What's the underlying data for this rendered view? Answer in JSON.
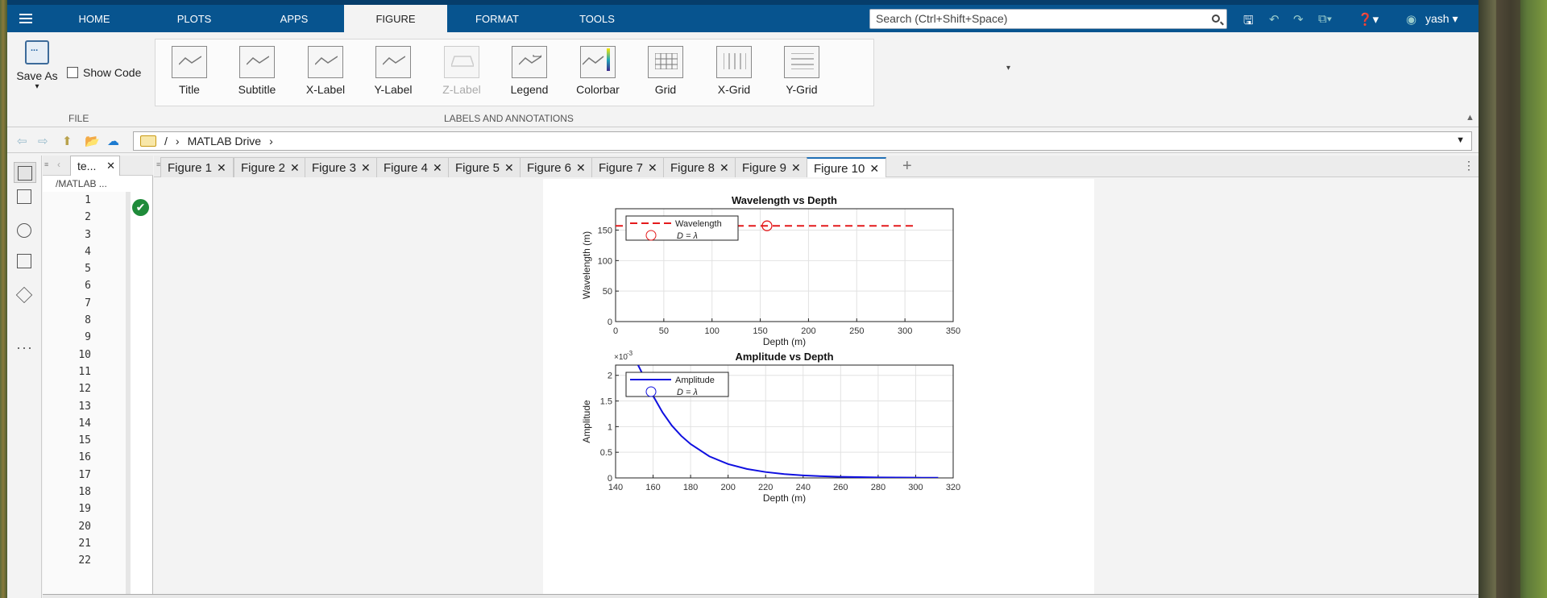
{
  "menubar": {
    "tabs": [
      "HOME",
      "PLOTS",
      "APPS",
      "FIGURE",
      "FORMAT",
      "TOOLS"
    ],
    "active": "FIGURE",
    "search_placeholder": "Search (Ctrl+Shift+Space)",
    "user": "yash"
  },
  "ribbon": {
    "file": {
      "save_as": "Save As",
      "show_code": "Show Code",
      "group_label": "FILE"
    },
    "labels_group_label": "LABELS AND ANNOTATIONS",
    "buttons": [
      "Title",
      "Subtitle",
      "X-Label",
      "Y-Label",
      "Z-Label",
      "Legend",
      "Colorbar",
      "Grid",
      "X-Grid",
      "Y-Grid"
    ]
  },
  "address": {
    "root": "/",
    "crumb": "MATLAB Drive"
  },
  "editor": {
    "tab_label": "te...",
    "path": "/MATLAB ...",
    "line_numbers": [
      "1",
      "2",
      "3",
      "4",
      "5",
      "6",
      "7",
      "8",
      "9",
      "10",
      "11",
      "12",
      "13",
      "14",
      "15",
      "16",
      "17",
      "18",
      "19",
      "20",
      "21",
      "22"
    ]
  },
  "figure_tabs": [
    "Figure 1",
    "Figure 2",
    "Figure 3",
    "Figure 4",
    "Figure 5",
    "Figure 6",
    "Figure 7",
    "Figure 8",
    "Figure 9",
    "Figure 10"
  ],
  "active_figure": "Figure 10",
  "chart_data": [
    {
      "type": "line",
      "title": "Wavelength vs Depth",
      "xlabel": "Depth (m)",
      "ylabel": "Wavelength (m)",
      "xlim": [
        0,
        350
      ],
      "ylim": [
        0,
        185
      ],
      "xticks": [
        0,
        50,
        100,
        150,
        200,
        250,
        300,
        350
      ],
      "yticks": [
        0,
        50,
        100,
        150
      ],
      "grid": true,
      "legend_location": "top-left",
      "series": [
        {
          "name": "Wavelength",
          "style": "dashed",
          "color": "#e41a1c",
          "x": [
            0,
            310
          ],
          "y": [
            157,
            157
          ]
        },
        {
          "name": "D  =  λ",
          "style": "marker-circle",
          "color": "#e41a1c",
          "x": [
            157
          ],
          "y": [
            157
          ]
        }
      ]
    },
    {
      "type": "line",
      "title": "Amplitude vs Depth",
      "xlabel": "Depth (m)",
      "ylabel": "Amplitude",
      "exponent_label": "×10",
      "exponent_power": "-3",
      "xlim": [
        140,
        320
      ],
      "ylim": [
        0,
        0.0022
      ],
      "xticks": [
        140,
        160,
        180,
        200,
        220,
        240,
        260,
        280,
        300,
        320
      ],
      "yticks": [
        0,
        0.0005,
        0.001,
        0.0015,
        0.002
      ],
      "ytick_labels": [
        "0",
        "0.5",
        "1",
        "1.5",
        "2"
      ],
      "grid": true,
      "legend_location": "top-left",
      "series": [
        {
          "name": "Amplitude",
          "style": "solid",
          "color": "#1010e0",
          "x": [
            152,
            155,
            160,
            165,
            170,
            175,
            180,
            190,
            200,
            210,
            220,
            230,
            240,
            250,
            260,
            270,
            280,
            290,
            300,
            312
          ],
          "y": [
            0.0022,
            0.00198,
            0.0016,
            0.00128,
            0.00102,
            0.00082,
            0.00066,
            0.00042,
            0.00027,
            0.000175,
            0.000115,
            7.5e-05,
            5e-05,
            3.3e-05,
            2.2e-05,
            1.5e-05,
            1e-05,
            7e-06,
            5e-06,
            3e-06
          ]
        },
        {
          "name": "D  =  λ",
          "style": "marker-circle",
          "color": "#1010e0",
          "x": [],
          "y": []
        }
      ]
    }
  ]
}
